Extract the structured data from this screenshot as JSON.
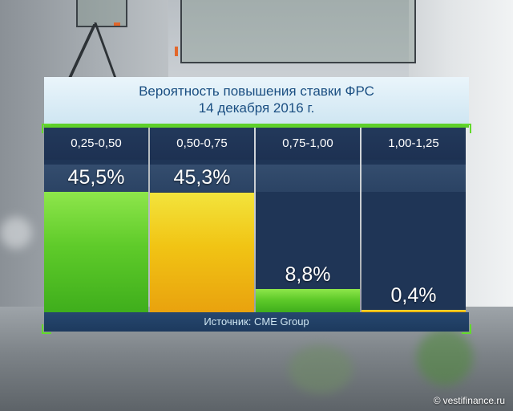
{
  "chart_data": {
    "type": "bar",
    "title": "Вероятность повышения ставки ФРС",
    "subtitle": "14 декабря 2016 г.",
    "categories": [
      "0,25-0,50",
      "0,50-0,75",
      "0,75-1,00",
      "1,00-1,25"
    ],
    "values": [
      45.5,
      45.3,
      8.8,
      0.4
    ],
    "value_labels": [
      "45,5%",
      "45,3%",
      "8,8%",
      "0,4%"
    ],
    "bar_colors": [
      "#5fcb2a",
      "#f1c414",
      "#5fcb2a",
      "#f1c414"
    ],
    "ylim": [
      0,
      45.5
    ],
    "grid": false,
    "legend": false
  },
  "source": "Источник: CME Group",
  "watermark": {
    "symbol": "©",
    "text": "vestifinance.ru"
  },
  "colors": {
    "title_text": "#1b4f82",
    "panel_bg": "#1f3556",
    "accent_green": "#5ed02a",
    "accent_yellow": "#f1c414"
  }
}
